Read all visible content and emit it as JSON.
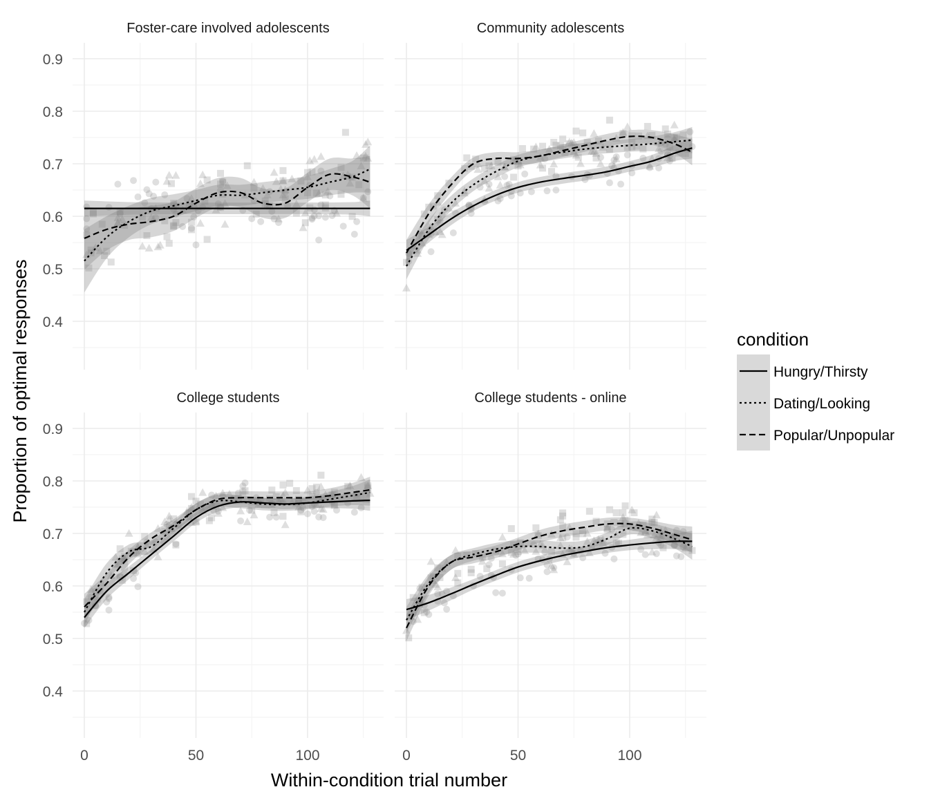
{
  "chart_data": {
    "type": "scatter",
    "xlabel": "Within-condition trial number",
    "ylabel": "Proportion of optimal responses",
    "xlim": [
      -5,
      130
    ],
    "ylim": [
      0.33,
      0.93
    ],
    "x_ticks": [
      0,
      50,
      100
    ],
    "y_ticks": [
      0.4,
      0.5,
      0.6,
      0.7,
      0.8,
      0.9
    ],
    "grid": true,
    "legend": {
      "title": "condition",
      "position": "right",
      "entries": [
        {
          "name": "Hungry/Thirsty",
          "linetype": "solid",
          "shape": "circle"
        },
        {
          "name": "Dating/Looking",
          "linetype": "dotted",
          "shape": "triangle"
        },
        {
          "name": "Popular/Unpopular",
          "linetype": "dashed",
          "shape": "square"
        }
      ]
    },
    "panels": [
      {
        "title": "Foster-care involved adolescents",
        "series": [
          {
            "name": "Hungry/Thirsty",
            "trend": {
              "x": [
                0,
                20,
                40,
                60,
                80,
                100,
                120,
                128
              ],
              "y": [
                0.615,
                0.615,
                0.615,
                0.615,
                0.615,
                0.615,
                0.615,
                0.615
              ],
              "se": [
                0.015,
                0.012,
                0.011,
                0.011,
                0.011,
                0.011,
                0.012,
                0.015
              ]
            }
          },
          {
            "name": "Dating/Looking",
            "trend": {
              "x": [
                0,
                10,
                20,
                30,
                40,
                50,
                60,
                70,
                80,
                90,
                100,
                110,
                120,
                128
              ],
              "y": [
                0.515,
                0.56,
                0.59,
                0.61,
                0.62,
                0.63,
                0.64,
                0.64,
                0.645,
                0.65,
                0.655,
                0.665,
                0.675,
                0.69
              ],
              "se": [
                0.06,
                0.04,
                0.03,
                0.025,
                0.022,
                0.02,
                0.02,
                0.02,
                0.02,
                0.02,
                0.022,
                0.025,
                0.03,
                0.045
              ]
            }
          },
          {
            "name": "Popular/Unpopular",
            "trend": {
              "x": [
                0,
                10,
                20,
                30,
                40,
                50,
                60,
                70,
                80,
                90,
                100,
                110,
                120,
                128
              ],
              "y": [
                0.558,
                0.575,
                0.585,
                0.59,
                0.6,
                0.625,
                0.645,
                0.645,
                0.625,
                0.625,
                0.655,
                0.68,
                0.675,
                0.665
              ],
              "se": [
                0.06,
                0.04,
                0.03,
                0.03,
                0.028,
                0.028,
                0.028,
                0.028,
                0.028,
                0.028,
                0.028,
                0.03,
                0.035,
                0.05
              ]
            }
          }
        ]
      },
      {
        "title": "Community adolescents",
        "series": [
          {
            "name": "Hungry/Thirsty",
            "trend": {
              "x": [
                0,
                10,
                20,
                30,
                40,
                50,
                60,
                70,
                80,
                90,
                100,
                110,
                120,
                128
              ],
              "y": [
                0.535,
                0.565,
                0.595,
                0.62,
                0.64,
                0.655,
                0.665,
                0.672,
                0.678,
                0.685,
                0.695,
                0.705,
                0.72,
                0.73
              ],
              "se": [
                0.02,
                0.015,
                0.012,
                0.01,
                0.01,
                0.01,
                0.01,
                0.01,
                0.01,
                0.01,
                0.01,
                0.012,
                0.015,
                0.02
              ]
            }
          },
          {
            "name": "Dating/Looking",
            "trend": {
              "x": [
                0,
                10,
                20,
                30,
                40,
                50,
                60,
                70,
                80,
                90,
                100,
                110,
                120,
                128
              ],
              "y": [
                0.505,
                0.575,
                0.625,
                0.66,
                0.685,
                0.705,
                0.715,
                0.722,
                0.728,
                0.732,
                0.735,
                0.738,
                0.742,
                0.745
              ],
              "se": [
                0.025,
                0.018,
                0.014,
                0.012,
                0.012,
                0.012,
                0.012,
                0.012,
                0.012,
                0.012,
                0.012,
                0.014,
                0.018,
                0.025
              ]
            }
          },
          {
            "name": "Popular/Unpopular",
            "trend": {
              "x": [
                0,
                10,
                20,
                30,
                40,
                50,
                60,
                70,
                80,
                90,
                100,
                110,
                120,
                128
              ],
              "y": [
                0.53,
                0.605,
                0.66,
                0.7,
                0.71,
                0.71,
                0.715,
                0.725,
                0.735,
                0.745,
                0.752,
                0.75,
                0.738,
                0.722
              ],
              "se": [
                0.025,
                0.018,
                0.014,
                0.012,
                0.012,
                0.012,
                0.012,
                0.012,
                0.012,
                0.012,
                0.012,
                0.014,
                0.018,
                0.025
              ]
            }
          }
        ]
      },
      {
        "title": "College students",
        "series": [
          {
            "name": "Hungry/Thirsty",
            "trend": {
              "x": [
                0,
                10,
                20,
                30,
                40,
                50,
                60,
                70,
                80,
                90,
                100,
                110,
                120,
                128
              ],
              "y": [
                0.54,
                0.59,
                0.625,
                0.66,
                0.695,
                0.73,
                0.752,
                0.76,
                0.758,
                0.756,
                0.758,
                0.76,
                0.762,
                0.763
              ],
              "se": [
                0.02,
                0.015,
                0.012,
                0.01,
                0.01,
                0.01,
                0.01,
                0.01,
                0.01,
                0.01,
                0.01,
                0.012,
                0.015,
                0.02
              ]
            }
          },
          {
            "name": "Dating/Looking",
            "trend": {
              "x": [
                0,
                10,
                20,
                30,
                40,
                50,
                60,
                70,
                80,
                90,
                100,
                110,
                120,
                128
              ],
              "y": [
                0.55,
                0.625,
                0.665,
                0.675,
                0.71,
                0.745,
                0.762,
                0.76,
                0.756,
                0.755,
                0.758,
                0.765,
                0.772,
                0.778
              ],
              "se": [
                0.025,
                0.018,
                0.014,
                0.012,
                0.012,
                0.012,
                0.012,
                0.012,
                0.012,
                0.012,
                0.012,
                0.014,
                0.018,
                0.025
              ]
            }
          },
          {
            "name": "Popular/Unpopular",
            "trend": {
              "x": [
                0,
                10,
                20,
                30,
                40,
                50,
                60,
                70,
                80,
                90,
                100,
                110,
                120,
                128
              ],
              "y": [
                0.56,
                0.605,
                0.655,
                0.69,
                0.715,
                0.745,
                0.765,
                0.768,
                0.768,
                0.768,
                0.768,
                0.772,
                0.778,
                0.783
              ],
              "se": [
                0.025,
                0.018,
                0.014,
                0.012,
                0.012,
                0.012,
                0.012,
                0.012,
                0.012,
                0.012,
                0.012,
                0.014,
                0.018,
                0.025
              ]
            }
          }
        ]
      },
      {
        "title": "College students - online",
        "series": [
          {
            "name": "Hungry/Thirsty",
            "trend": {
              "x": [
                0,
                10,
                20,
                30,
                40,
                50,
                60,
                70,
                80,
                90,
                100,
                110,
                120,
                128
              ],
              "y": [
                0.555,
                0.568,
                0.585,
                0.603,
                0.62,
                0.636,
                0.648,
                0.658,
                0.666,
                0.673,
                0.678,
                0.682,
                0.685,
                0.685
              ],
              "se": [
                0.02,
                0.015,
                0.012,
                0.01,
                0.01,
                0.01,
                0.01,
                0.01,
                0.01,
                0.01,
                0.01,
                0.012,
                0.015,
                0.02
              ]
            }
          },
          {
            "name": "Dating/Looking",
            "trend": {
              "x": [
                0,
                10,
                20,
                30,
                40,
                50,
                60,
                70,
                80,
                90,
                100,
                110,
                120,
                128
              ],
              "y": [
                0.535,
                0.605,
                0.645,
                0.66,
                0.67,
                0.675,
                0.675,
                0.672,
                0.675,
                0.69,
                0.71,
                0.705,
                0.69,
                0.675
              ],
              "se": [
                0.025,
                0.018,
                0.014,
                0.012,
                0.012,
                0.012,
                0.012,
                0.012,
                0.012,
                0.012,
                0.012,
                0.014,
                0.018,
                0.025
              ]
            }
          },
          {
            "name": "Popular/Unpopular",
            "trend": {
              "x": [
                0,
                10,
                20,
                30,
                40,
                50,
                60,
                70,
                80,
                90,
                100,
                110,
                120,
                128
              ],
              "y": [
                0.52,
                0.6,
                0.645,
                0.655,
                0.665,
                0.68,
                0.695,
                0.705,
                0.712,
                0.718,
                0.718,
                0.71,
                0.698,
                0.688
              ],
              "se": [
                0.025,
                0.018,
                0.014,
                0.012,
                0.012,
                0.012,
                0.012,
                0.012,
                0.012,
                0.012,
                0.012,
                0.014,
                0.018,
                0.025
              ]
            }
          }
        ]
      }
    ]
  }
}
